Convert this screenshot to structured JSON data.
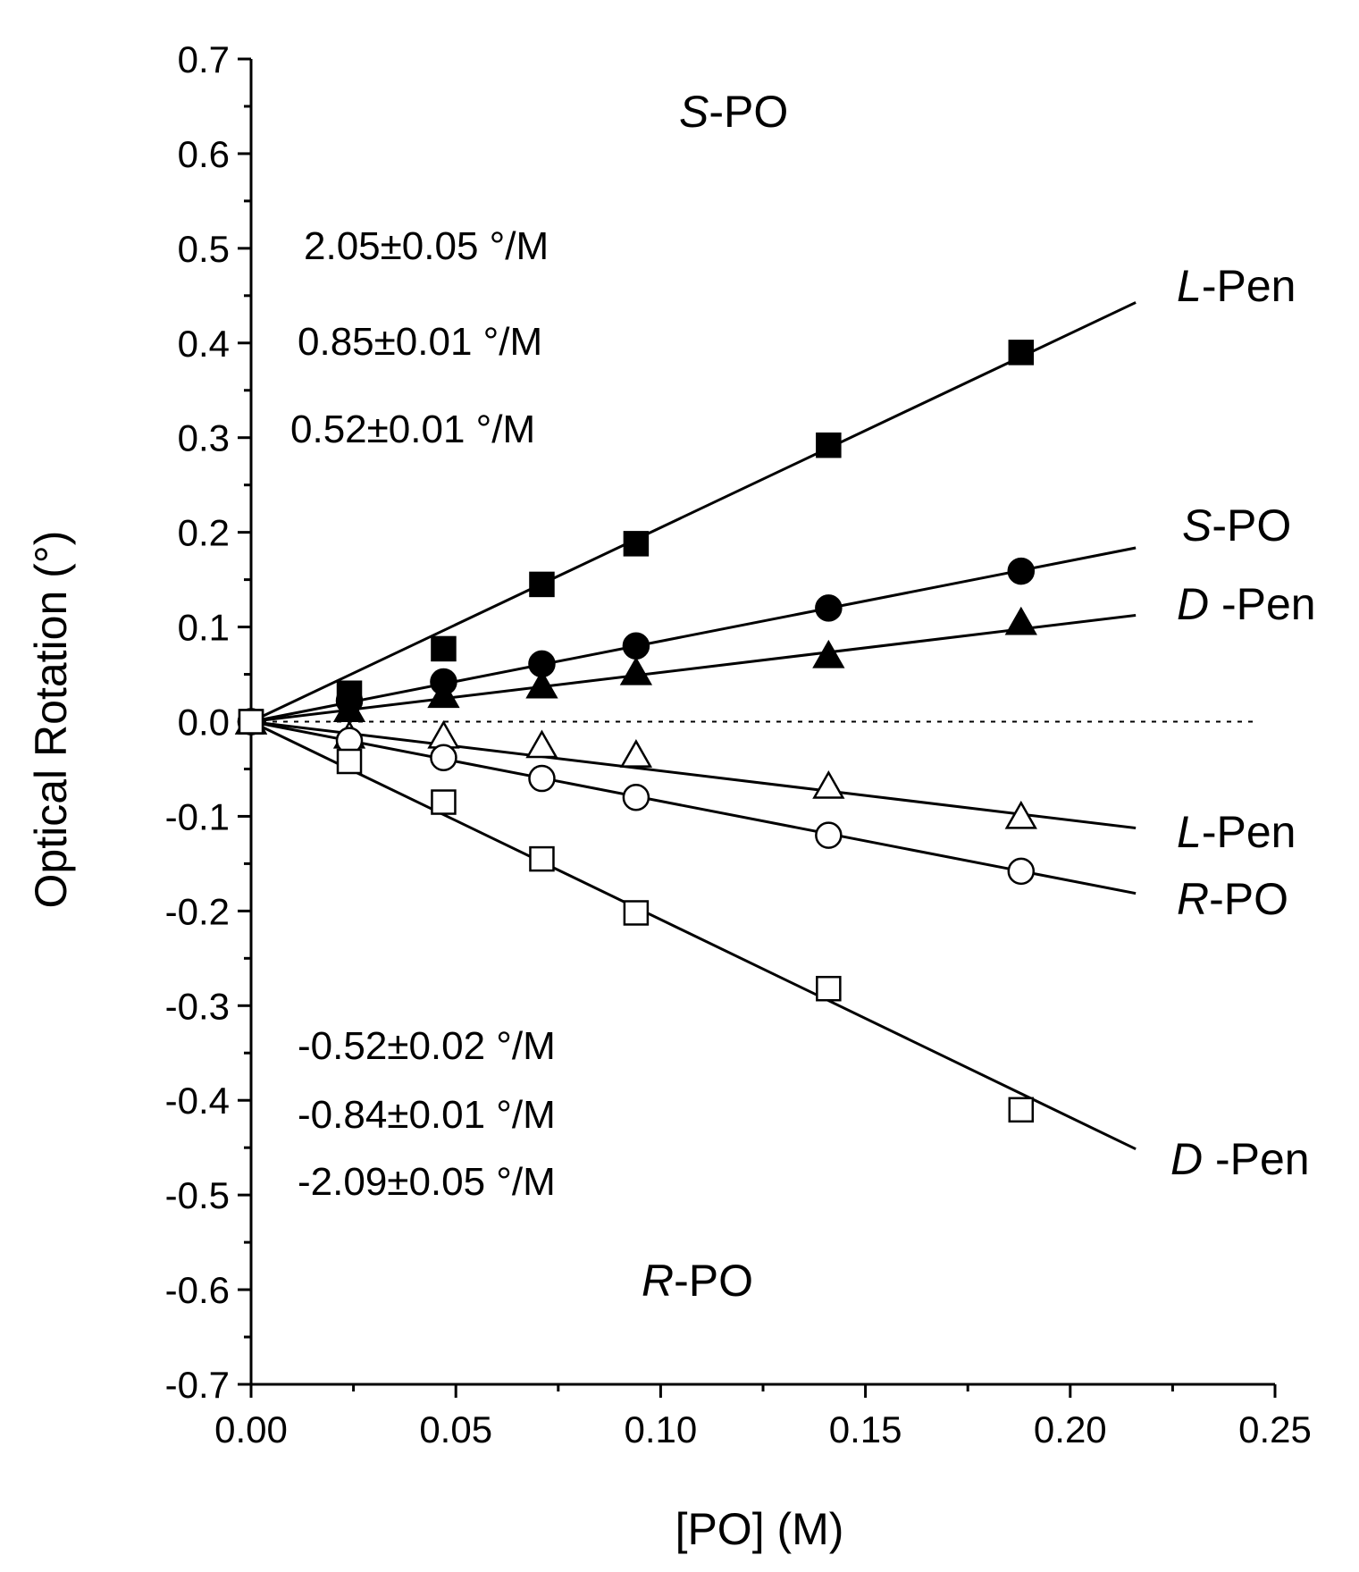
{
  "chart_data": {
    "type": "scatter",
    "xlabel": "[PO] (M)",
    "ylabel": "Optical Rotation (°)",
    "xlim": [
      0,
      0.25
    ],
    "ylim": [
      -0.7,
      0.7
    ],
    "xticks": [
      "0.00",
      "0.05",
      "0.10",
      "0.15",
      "0.20",
      "0.25"
    ],
    "yticks": [
      "0.7",
      "0.6",
      "0.5",
      "0.4",
      "0.3",
      "0.2",
      "0.1",
      "0.0",
      "-0.1",
      "-0.2",
      "-0.3",
      "-0.4",
      "-0.5",
      "-0.6",
      "-0.7"
    ],
    "zero_line": "dotted",
    "grid": false,
    "region_labels": {
      "top": {
        "italic": "S",
        "text": "-PO"
      },
      "bottom": {
        "italic": "R",
        "text": "-PO"
      }
    },
    "slopes_top": [
      "2.05±0.05 °/M",
      "0.85±0.01 °/M",
      "0.52±0.01 °/M"
    ],
    "slopes_bottom": [
      "-0.52±0.02 °/M",
      "-0.84±0.01 °/M",
      "-2.09±0.05 °/M"
    ],
    "series": [
      {
        "marker": "square",
        "filled": true,
        "label_italic": "L",
        "label_text": "-Pen",
        "slope": 2.05,
        "fit_end": 0.216,
        "x": [
          0,
          0.024,
          0.047,
          0.071,
          0.094,
          0.141,
          0.188
        ],
        "y": [
          0,
          0.03,
          0.077,
          0.145,
          0.188,
          0.292,
          0.39
        ]
      },
      {
        "marker": "circle",
        "filled": true,
        "label_italic": "S",
        "label_text": "-PO",
        "slope": 0.85,
        "fit_end": 0.216,
        "x": [
          0,
          0.024,
          0.047,
          0.071,
          0.094,
          0.141,
          0.188
        ],
        "y": [
          0,
          0.022,
          0.042,
          0.061,
          0.08,
          0.12,
          0.159
        ]
      },
      {
        "marker": "triangle",
        "filled": true,
        "label_italic": "D",
        "label_text": " -Pen",
        "slope": 0.52,
        "fit_end": 0.216,
        "x": [
          0,
          0.024,
          0.047,
          0.071,
          0.094,
          0.141,
          0.188
        ],
        "y": [
          0,
          0.013,
          0.028,
          0.038,
          0.052,
          0.07,
          0.105
        ]
      },
      {
        "marker": "triangle",
        "filled": false,
        "label_italic": "L",
        "label_text": "-Pen",
        "slope": -0.52,
        "fit_end": 0.216,
        "x": [
          0,
          0.024,
          0.047,
          0.071,
          0.094,
          0.141,
          0.188
        ],
        "y": [
          0,
          -0.015,
          -0.015,
          -0.025,
          -0.035,
          -0.068,
          -0.1
        ]
      },
      {
        "marker": "circle",
        "filled": false,
        "label_italic": "R",
        "label_text": "-PO",
        "slope": -0.84,
        "fit_end": 0.216,
        "x": [
          0,
          0.024,
          0.047,
          0.071,
          0.094,
          0.141,
          0.188
        ],
        "y": [
          0,
          -0.02,
          -0.038,
          -0.06,
          -0.08,
          -0.12,
          -0.158
        ]
      },
      {
        "marker": "square",
        "filled": false,
        "label_italic": "D",
        "label_text": " -Pen",
        "slope": -2.09,
        "fit_end": 0.216,
        "x": [
          0,
          0.024,
          0.047,
          0.071,
          0.094,
          0.141,
          0.188
        ],
        "y": [
          0,
          -0.042,
          -0.085,
          -0.145,
          -0.202,
          -0.282,
          -0.41
        ]
      }
    ]
  }
}
